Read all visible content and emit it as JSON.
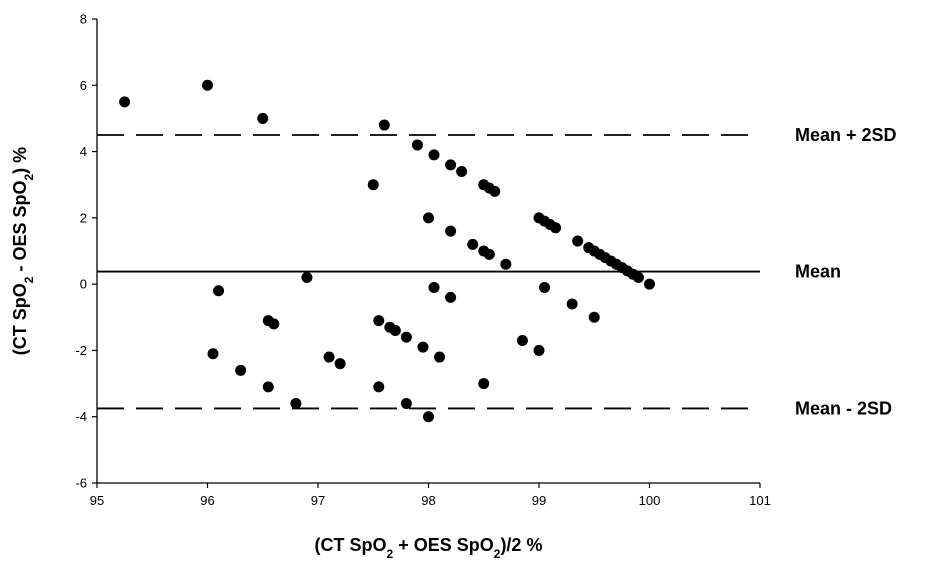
{
  "chart_data": {
    "type": "scatter",
    "xlabel": "(CT SpO2 + OES SpO2)/2 %",
    "ylabel": "(CT SpO2 - OES SpO2) %",
    "xlabel_parts": [
      [
        "(CT SpO",
        false
      ],
      [
        "2",
        true
      ],
      [
        " + OES SpO",
        false
      ],
      [
        "2",
        true
      ],
      [
        ")/2 %",
        false
      ]
    ],
    "ylabel_parts": [
      [
        "(CT SpO",
        false
      ],
      [
        "2",
        true
      ],
      [
        " - OES SpO",
        false
      ],
      [
        "2",
        true
      ],
      [
        ") %",
        false
      ]
    ],
    "xlim": [
      95,
      101
    ],
    "ylim": [
      -6,
      8
    ],
    "xticks": [
      95,
      96,
      97,
      98,
      99,
      100,
      101
    ],
    "yticks": [
      -6,
      -4,
      -2,
      0,
      2,
      4,
      6,
      8
    ],
    "grid": false,
    "reference_lines": [
      {
        "label": "Mean + 2SD",
        "y": 4.5,
        "style": "dashed"
      },
      {
        "label": "Mean",
        "y": 0.38,
        "style": "solid"
      },
      {
        "label": "Mean - 2SD",
        "y": -3.75,
        "style": "dashed"
      }
    ],
    "points": [
      {
        "x": 95.25,
        "y": 5.5
      },
      {
        "x": 96.0,
        "y": 6.0
      },
      {
        "x": 96.5,
        "y": 5.0
      },
      {
        "x": 97.6,
        "y": 4.8
      },
      {
        "x": 97.9,
        "y": 4.2
      },
      {
        "x": 98.05,
        "y": 3.9
      },
      {
        "x": 98.2,
        "y": 3.6
      },
      {
        "x": 98.3,
        "y": 3.4
      },
      {
        "x": 97.5,
        "y": 3.0
      },
      {
        "x": 98.5,
        "y": 3.0
      },
      {
        "x": 98.55,
        "y": 2.9
      },
      {
        "x": 98.6,
        "y": 2.8
      },
      {
        "x": 98.0,
        "y": 2.0
      },
      {
        "x": 99.0,
        "y": 2.0
      },
      {
        "x": 99.05,
        "y": 1.9
      },
      {
        "x": 99.1,
        "y": 1.8
      },
      {
        "x": 99.15,
        "y": 1.7
      },
      {
        "x": 98.2,
        "y": 1.6
      },
      {
        "x": 99.35,
        "y": 1.3
      },
      {
        "x": 98.4,
        "y": 1.2
      },
      {
        "x": 99.45,
        "y": 1.1
      },
      {
        "x": 99.5,
        "y": 1.0
      },
      {
        "x": 98.5,
        "y": 1.0
      },
      {
        "x": 99.55,
        "y": 0.9
      },
      {
        "x": 98.55,
        "y": 0.9
      },
      {
        "x": 99.6,
        "y": 0.8
      },
      {
        "x": 99.65,
        "y": 0.7
      },
      {
        "x": 99.7,
        "y": 0.6
      },
      {
        "x": 98.7,
        "y": 0.6
      },
      {
        "x": 99.75,
        "y": 0.5
      },
      {
        "x": 99.8,
        "y": 0.4
      },
      {
        "x": 99.85,
        "y": 0.3
      },
      {
        "x": 99.9,
        "y": 0.2
      },
      {
        "x": 96.9,
        "y": 0.2
      },
      {
        "x": 100.0,
        "y": 0.0
      },
      {
        "x": 96.1,
        "y": -0.2
      },
      {
        "x": 98.05,
        "y": -0.1
      },
      {
        "x": 99.05,
        "y": -0.1
      },
      {
        "x": 98.2,
        "y": -0.4
      },
      {
        "x": 99.3,
        "y": -0.6
      },
      {
        "x": 99.5,
        "y": -1.0
      },
      {
        "x": 96.55,
        "y": -1.1
      },
      {
        "x": 96.6,
        "y": -1.2
      },
      {
        "x": 97.55,
        "y": -1.1
      },
      {
        "x": 97.65,
        "y": -1.3
      },
      {
        "x": 97.7,
        "y": -1.4
      },
      {
        "x": 97.8,
        "y": -1.6
      },
      {
        "x": 98.85,
        "y": -1.7
      },
      {
        "x": 97.95,
        "y": -1.9
      },
      {
        "x": 99.0,
        "y": -2.0
      },
      {
        "x": 96.05,
        "y": -2.1
      },
      {
        "x": 97.1,
        "y": -2.2
      },
      {
        "x": 98.1,
        "y": -2.2
      },
      {
        "x": 97.2,
        "y": -2.4
      },
      {
        "x": 96.3,
        "y": -2.6
      },
      {
        "x": 96.55,
        "y": -3.1
      },
      {
        "x": 97.55,
        "y": -3.1
      },
      {
        "x": 98.5,
        "y": -3.0
      },
      {
        "x": 96.8,
        "y": -3.6
      },
      {
        "x": 97.8,
        "y": -3.6
      },
      {
        "x": 98.0,
        "y": -4.0
      }
    ]
  }
}
